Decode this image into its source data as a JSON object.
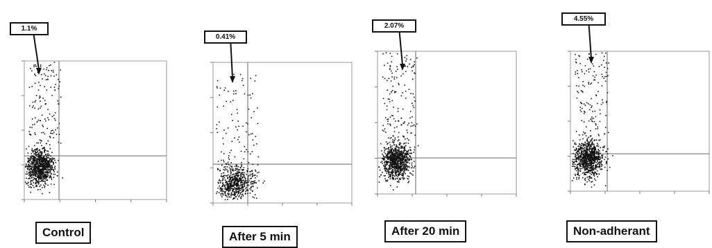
{
  "chart_data": [
    {
      "type": "scatter",
      "label": "Control",
      "gate_percent": "1.1%",
      "density": "dense-cluster"
    },
    {
      "type": "scatter",
      "label": "After 5 min",
      "gate_percent": "0.41%",
      "density": "low-spread"
    },
    {
      "type": "scatter",
      "label": "After 20 min",
      "gate_percent": "2.07%",
      "density": "dense-cluster"
    },
    {
      "type": "scatter",
      "label": "Non-adherant",
      "gate_percent": "4.55%",
      "density": "dense-cluster"
    }
  ],
  "colors": {
    "axis": "#111111",
    "gate": "#666666",
    "dots": "#111111"
  }
}
